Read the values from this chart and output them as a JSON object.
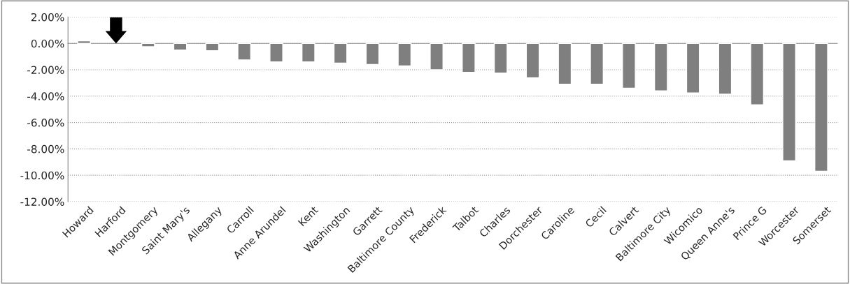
{
  "chart_data": {
    "type": "bar",
    "categories": [
      "Howard",
      "Harford",
      "Montgomery",
      "Saint Mary's",
      "Allegany",
      "Carroll",
      "Anne Arundel",
      "Kent",
      "Washington",
      "Garrett",
      "Baltimore County",
      "Frederick",
      "Talbot",
      "Charles",
      "Dorchester",
      "Caroline",
      "Cecil",
      "Calvert",
      "Baltimore City",
      "Wicomico",
      "Queen Anne's",
      "Prince G",
      "Worcester",
      "Somerset"
    ],
    "values": [
      0.2,
      null,
      -0.25,
      -0.5,
      -0.55,
      -1.25,
      -1.4,
      -1.4,
      -1.5,
      -1.6,
      -1.7,
      -2.0,
      -2.2,
      -2.25,
      -2.6,
      -3.1,
      -3.1,
      -3.4,
      -3.6,
      -3.75,
      -3.85,
      -4.65,
      -8.9,
      -9.7
    ],
    "color": "#7f7f7f",
    "ylim": [
      -12,
      2
    ],
    "yticks": [
      {
        "value": 2,
        "label": "2.00%"
      },
      {
        "value": 0,
        "label": "0.00%"
      },
      {
        "value": -2,
        "label": "-2.00%"
      },
      {
        "value": -4,
        "label": "-4.00%"
      },
      {
        "value": -6,
        "label": "-6.00%"
      },
      {
        "value": -8,
        "label": "-8.00%"
      },
      {
        "value": -10,
        "label": "-10.00%"
      },
      {
        "value": -12,
        "label": "-12.00%"
      }
    ],
    "grid": "y"
  }
}
